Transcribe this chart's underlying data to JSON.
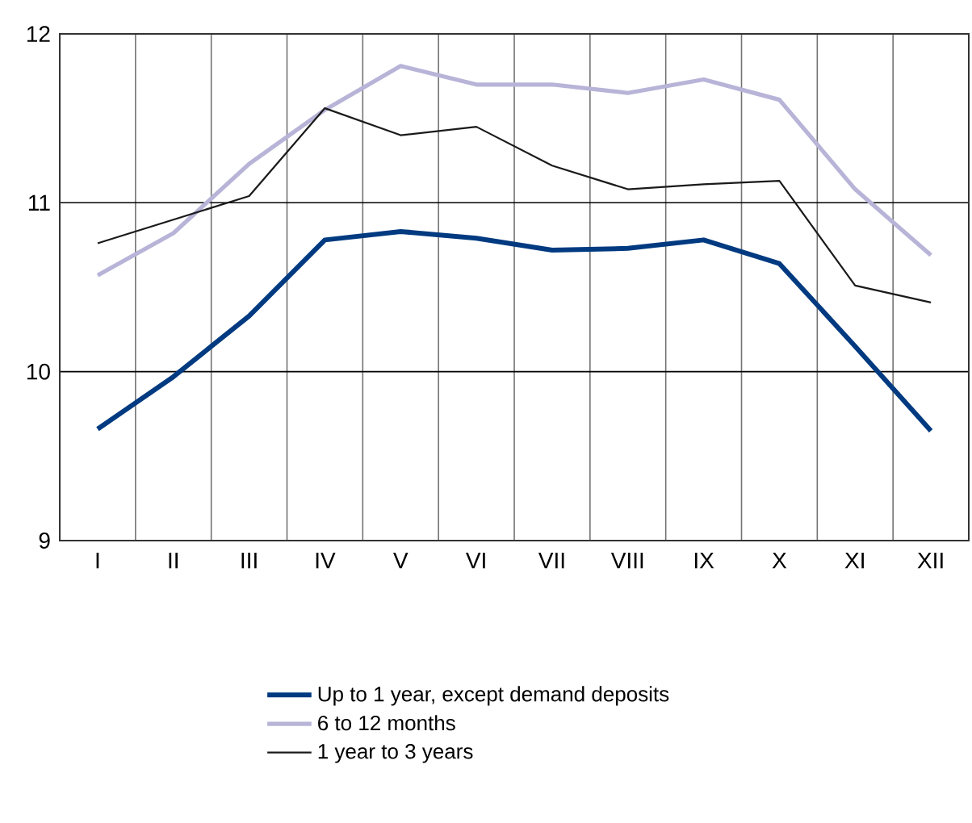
{
  "chart_data": {
    "type": "line",
    "categories": [
      "I",
      "II",
      "III",
      "IV",
      "V",
      "VI",
      "VII",
      "VIII",
      "IX",
      "X",
      "XI",
      "XII"
    ],
    "series": [
      {
        "name": "Up to 1 year, except demand deposits",
        "color": "#003a80",
        "values": [
          9.66,
          9.97,
          10.33,
          10.78,
          10.83,
          10.79,
          10.72,
          10.73,
          10.78,
          10.64,
          10.15,
          9.65
        ]
      },
      {
        "name": "6 to 12 months",
        "color": "#b8b4d8",
        "values": [
          10.57,
          10.82,
          11.23,
          11.55,
          11.81,
          11.7,
          11.7,
          11.65,
          11.73,
          11.61,
          11.08,
          10.69
        ]
      },
      {
        "name": "1 year to 3 years",
        "color": "#1a1a1a",
        "values": [
          10.76,
          10.9,
          11.04,
          11.56,
          11.4,
          11.45,
          11.22,
          11.08,
          11.11,
          11.13,
          10.51,
          10.41
        ]
      }
    ],
    "ylim": [
      9,
      12
    ],
    "yticks": [
      9,
      10,
      11,
      12
    ],
    "grid": true,
    "legend": "bottom",
    "marker": "none",
    "line_style": "solid"
  }
}
